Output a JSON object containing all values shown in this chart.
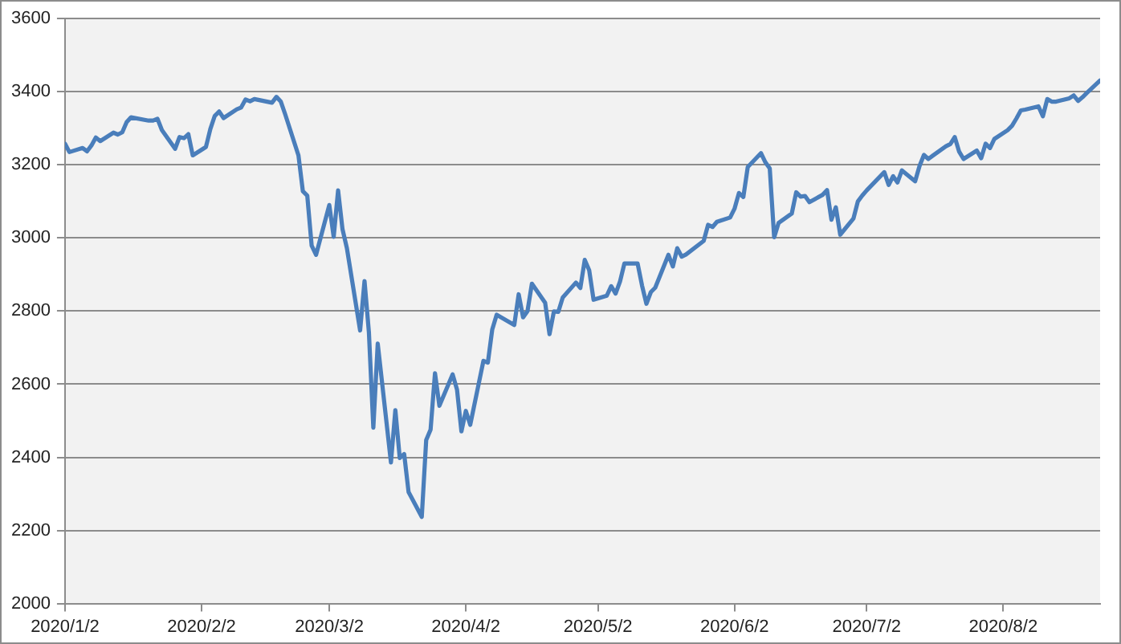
{
  "chart_data": {
    "type": "line",
    "x": [
      "2020-01-02",
      "2020-01-03",
      "2020-01-06",
      "2020-01-07",
      "2020-01-08",
      "2020-01-09",
      "2020-01-10",
      "2020-01-13",
      "2020-01-14",
      "2020-01-15",
      "2020-01-16",
      "2020-01-17",
      "2020-01-21",
      "2020-01-22",
      "2020-01-23",
      "2020-01-24",
      "2020-01-27",
      "2020-01-28",
      "2020-01-29",
      "2020-01-30",
      "2020-01-31",
      "2020-02-03",
      "2020-02-04",
      "2020-02-05",
      "2020-02-06",
      "2020-02-07",
      "2020-02-10",
      "2020-02-11",
      "2020-02-12",
      "2020-02-13",
      "2020-02-14",
      "2020-02-18",
      "2020-02-19",
      "2020-02-20",
      "2020-02-21",
      "2020-02-24",
      "2020-02-25",
      "2020-02-26",
      "2020-02-27",
      "2020-02-28",
      "2020-03-02",
      "2020-03-03",
      "2020-03-04",
      "2020-03-05",
      "2020-03-06",
      "2020-03-09",
      "2020-03-10",
      "2020-03-11",
      "2020-03-12",
      "2020-03-13",
      "2020-03-16",
      "2020-03-17",
      "2020-03-18",
      "2020-03-19",
      "2020-03-20",
      "2020-03-23",
      "2020-03-24",
      "2020-03-25",
      "2020-03-26",
      "2020-03-27",
      "2020-03-30",
      "2020-03-31",
      "2020-04-01",
      "2020-04-02",
      "2020-04-03",
      "2020-04-06",
      "2020-04-07",
      "2020-04-08",
      "2020-04-09",
      "2020-04-13",
      "2020-04-14",
      "2020-04-15",
      "2020-04-16",
      "2020-04-17",
      "2020-04-20",
      "2020-04-21",
      "2020-04-22",
      "2020-04-23",
      "2020-04-24",
      "2020-04-27",
      "2020-04-28",
      "2020-04-29",
      "2020-04-30",
      "2020-05-01",
      "2020-05-04",
      "2020-05-05",
      "2020-05-06",
      "2020-05-07",
      "2020-05-08",
      "2020-05-11",
      "2020-05-12",
      "2020-05-13",
      "2020-05-14",
      "2020-05-15",
      "2020-05-18",
      "2020-05-19",
      "2020-05-20",
      "2020-05-21",
      "2020-05-22",
      "2020-05-26",
      "2020-05-27",
      "2020-05-28",
      "2020-05-29",
      "2020-06-01",
      "2020-06-02",
      "2020-06-03",
      "2020-06-04",
      "2020-06-05",
      "2020-06-08",
      "2020-06-09",
      "2020-06-10",
      "2020-06-11",
      "2020-06-12",
      "2020-06-15",
      "2020-06-16",
      "2020-06-17",
      "2020-06-18",
      "2020-06-19",
      "2020-06-22",
      "2020-06-23",
      "2020-06-24",
      "2020-06-25",
      "2020-06-26",
      "2020-06-29",
      "2020-06-30",
      "2020-07-01",
      "2020-07-02",
      "2020-07-06",
      "2020-07-07",
      "2020-07-08",
      "2020-07-09",
      "2020-07-10",
      "2020-07-13",
      "2020-07-14",
      "2020-07-15",
      "2020-07-16",
      "2020-07-17",
      "2020-07-20",
      "2020-07-21",
      "2020-07-22",
      "2020-07-23",
      "2020-07-24",
      "2020-07-27",
      "2020-07-28",
      "2020-07-29",
      "2020-07-30",
      "2020-07-31",
      "2020-08-03",
      "2020-08-04",
      "2020-08-05",
      "2020-08-06",
      "2020-08-07",
      "2020-08-10",
      "2020-08-11",
      "2020-08-12",
      "2020-08-13",
      "2020-08-14",
      "2020-08-17",
      "2020-08-18",
      "2020-08-19",
      "2020-08-20",
      "2020-08-21",
      "2020-08-24"
    ],
    "series": [
      {
        "color": "#4a7ebb",
        "values": [
          3258,
          3235,
          3246,
          3237,
          3253,
          3275,
          3265,
          3288,
          3283,
          3289,
          3317,
          3330,
          3321,
          3321,
          3326,
          3295,
          3244,
          3276,
          3273,
          3284,
          3226,
          3249,
          3298,
          3334,
          3346,
          3328,
          3352,
          3357,
          3379,
          3374,
          3380,
          3370,
          3386,
          3373,
          3338,
          3226,
          3128,
          3116,
          2979,
          2954,
          3090,
          3003,
          3130,
          3024,
          2972,
          2747,
          2882,
          2741,
          2481,
          2711,
          2386,
          2529,
          2398,
          2409,
          2305,
          2237,
          2447,
          2476,
          2630,
          2541,
          2627,
          2585,
          2471,
          2527,
          2489,
          2664,
          2659,
          2750,
          2790,
          2762,
          2846,
          2783,
          2800,
          2875,
          2823,
          2737,
          2799,
          2798,
          2837,
          2878,
          2863,
          2940,
          2912,
          2831,
          2842,
          2868,
          2848,
          2881,
          2930,
          2930,
          2870,
          2820,
          2852,
          2864,
          2954,
          2922,
          2972,
          2949,
          2955,
          2992,
          3036,
          3030,
          3044,
          3056,
          3080,
          3123,
          3112,
          3194,
          3232,
          3207,
          3190,
          3002,
          3041,
          3067,
          3125,
          3113,
          3115,
          3098,
          3118,
          3131,
          3050,
          3084,
          3009,
          3053,
          3100,
          3116,
          3130,
          3180,
          3145,
          3169,
          3152,
          3185,
          3155,
          3197,
          3227,
          3216,
          3225,
          3251,
          3257,
          3276,
          3236,
          3216,
          3239,
          3218,
          3258,
          3246,
          3271,
          3295,
          3307,
          3327,
          3349,
          3351,
          3360,
          3333,
          3380,
          3373,
          3373,
          3382,
          3390,
          3375,
          3385,
          3397,
          3431
        ]
      }
    ],
    "xlim": [
      "2020-01-02",
      "2020-08-24"
    ],
    "xticks": [
      {
        "value": "2020-01-02",
        "label": "2020/1/2"
      },
      {
        "value": "2020-02-02",
        "label": "2020/2/2"
      },
      {
        "value": "2020-03-02",
        "label": "2020/3/2"
      },
      {
        "value": "2020-04-02",
        "label": "2020/4/2"
      },
      {
        "value": "2020-05-02",
        "label": "2020/5/2"
      },
      {
        "value": "2020-06-02",
        "label": "2020/6/2"
      },
      {
        "value": "2020-07-02",
        "label": "2020/7/2"
      },
      {
        "value": "2020-08-02",
        "label": "2020/8/2"
      }
    ],
    "ylim": [
      2000,
      3600
    ],
    "yticks": [
      2000,
      2200,
      2400,
      2600,
      2800,
      3000,
      3200,
      3400,
      3600
    ],
    "grid": "y",
    "marker": "none",
    "line_style": "solid"
  }
}
